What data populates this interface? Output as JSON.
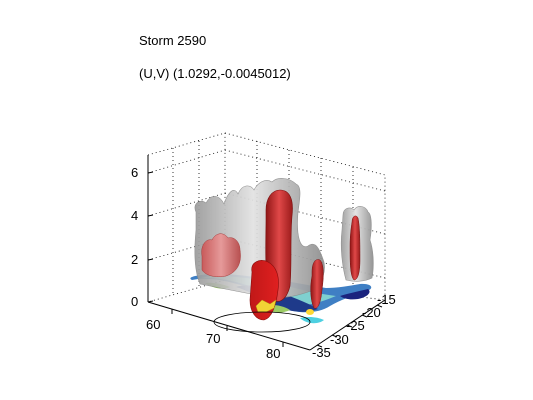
{
  "figure": {
    "title": "Storm 2590",
    "subtitle": "(U,V) (1.0292,-0.0045012)"
  },
  "chart_data": {
    "type": "3d-isosurface",
    "title": "Storm 2590",
    "subtitle": "(U,V) (1.0292,-0.0045012)",
    "z_axis": {
      "ticks": [
        "0",
        "2",
        "4",
        "6"
      ],
      "range": [
        0,
        7
      ]
    },
    "x_axis": {
      "ticks": [
        "60",
        "70",
        "80"
      ],
      "range": [
        55,
        85
      ]
    },
    "y_axis": {
      "ticks": [
        "-35",
        "-30",
        "-25",
        "-20",
        "-15"
      ],
      "range": [
        -37,
        -12
      ]
    },
    "grid": true,
    "surfaces": [
      {
        "name": "outer-isosurface",
        "color": "#b8b8b8",
        "opacity": 0.6
      },
      {
        "name": "inner-isosurface",
        "color": "#d42424",
        "opacity": 0.85
      },
      {
        "name": "base-reflectivity",
        "colors": [
          "#1a237e",
          "#1e88e5",
          "#4dd0e1",
          "#7cb342",
          "#fdd835"
        ]
      }
    ],
    "features": [
      {
        "id": "left-cell",
        "x": 63,
        "y": -22,
        "top": 4.1,
        "core_top": 3.0
      },
      {
        "id": "main-cell",
        "x": 70,
        "y": -26,
        "top": 5.8,
        "core_top": 5.4
      },
      {
        "id": "small-cell",
        "x": 73,
        "y": -24,
        "top": 2.9,
        "core_top": 2.3
      },
      {
        "id": "right-cell",
        "x": 71,
        "y": -14,
        "top": 4.5,
        "core_top": 3.9
      }
    ]
  }
}
